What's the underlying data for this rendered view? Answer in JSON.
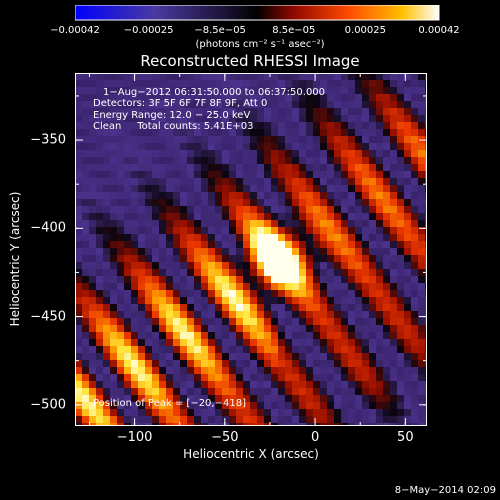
{
  "chart_data": {
    "type": "heatmap",
    "title": "Reconstructed RHESSI Image",
    "xlabel": "Heliocentric X (arcsec)",
    "ylabel": "Heliocentric Y (arcsec)",
    "xlim": [
      -133,
      62
    ],
    "ylim": [
      -512,
      -312
    ],
    "x_ticks": [
      "−100",
      "−50",
      "0",
      "50"
    ],
    "x_tick_values": [
      -100,
      -50,
      0,
      50
    ],
    "y_ticks": [
      "−350",
      "−400",
      "−450",
      "−500"
    ],
    "y_tick_values": [
      -350,
      -400,
      -450,
      -500
    ],
    "colorbar": {
      "ticks": [
        "−0.00042",
        "−0.00025",
        "−8.5e−05",
        "8.5e−05",
        "0.00025",
        "0.00042"
      ],
      "tick_values": [
        -0.00042,
        -0.00025,
        -8.5e-05,
        8.5e-05,
        0.00025,
        0.00042
      ],
      "range": [
        -0.00042,
        0.00042
      ],
      "unit_label": "(photons cm⁻² s⁻¹ asec⁻²)",
      "colors": [
        "#0000ff",
        "#3a2a8a",
        "#000000",
        "#b01000",
        "#ff5a00",
        "#ffd000",
        "#ffffff"
      ]
    },
    "annotations": {
      "time_range": "1−Aug−2012 06:31:50.000 to 06:37:50.000",
      "detectors": "Detectors: 3F 5F 6F 7F 8F 9F, Att 0",
      "energy": "Energy Range: 12.0 − 25.0 keV",
      "method": "Clean     Total counts: 5.41E+03",
      "peak": "Position of Peak = [−20,−418]"
    },
    "peak_position": [
      -20,
      -418
    ],
    "footer_date": "8−May−2014 02:09"
  }
}
